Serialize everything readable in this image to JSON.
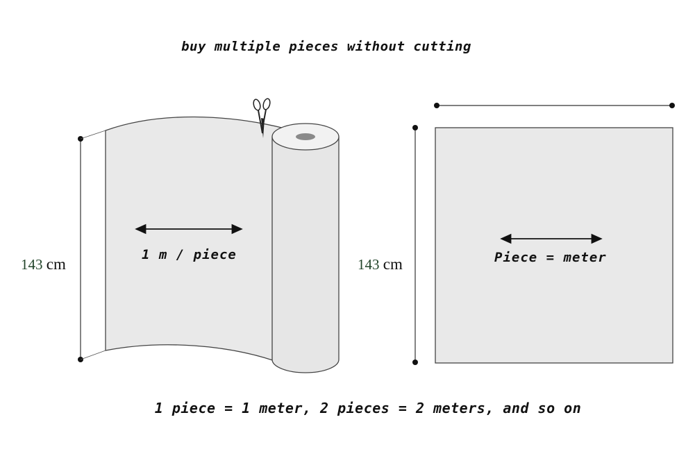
{
  "title": "buy multiple pieces without cutting",
  "footer": "1 piece = 1 meter, 2 pieces = 2 meters, and so on",
  "left_figure": {
    "arrow_label": "1 m / piece",
    "height_value": "143",
    "height_unit": "cm"
  },
  "right_figure": {
    "arrow_label": "Piece = meter",
    "height_value": "143",
    "height_unit": "cm"
  },
  "colors": {
    "fabric_fill": "#e9e9e9",
    "outline": "#333333",
    "roll_core": "#8a8a8a"
  }
}
